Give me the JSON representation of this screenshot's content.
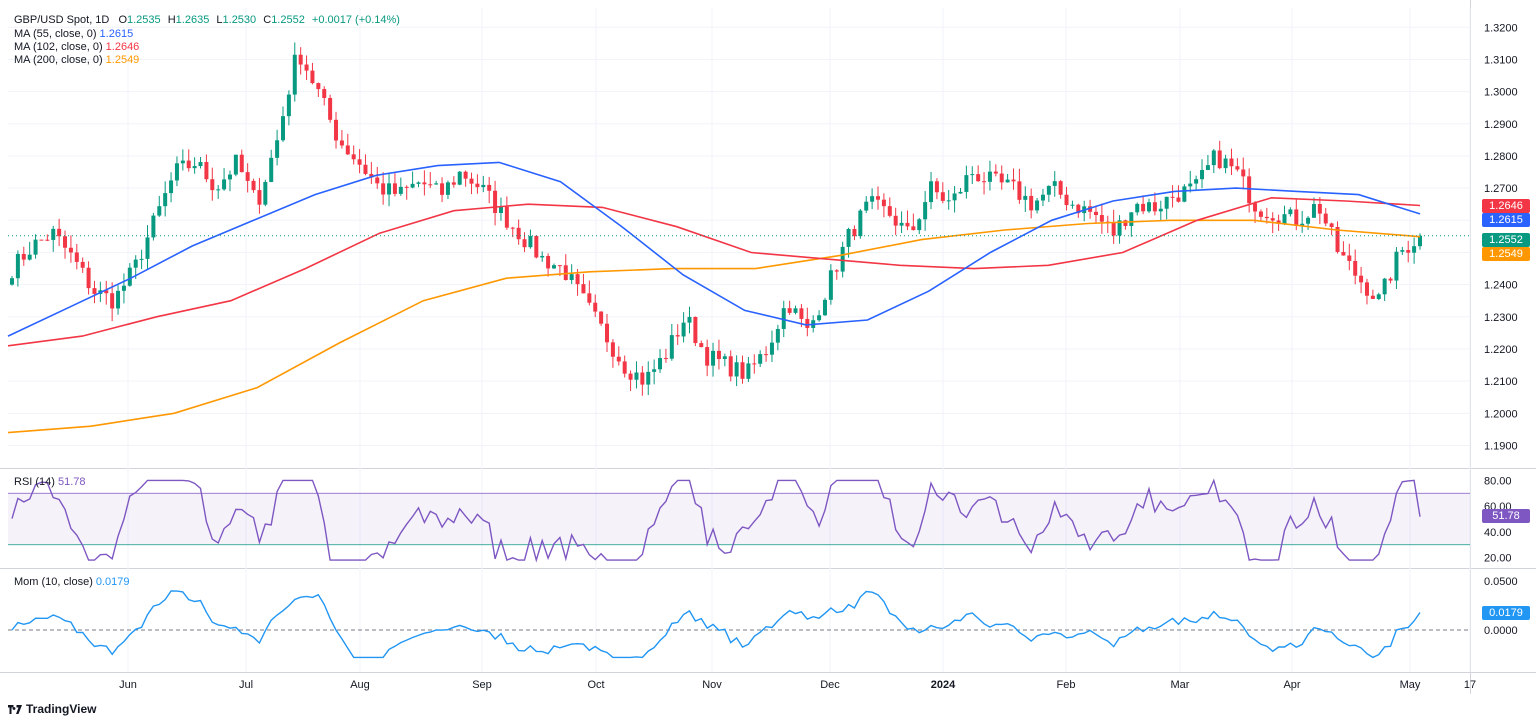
{
  "header": {
    "symbol": "GBP/USD Spot, 1D",
    "o_label": "O",
    "o": "1.2535",
    "h_label": "H",
    "h": "1.2635",
    "l_label": "L",
    "l": "1.2530",
    "c_label": "C",
    "c": "1.2552",
    "change": "+0.0017 (+0.14%)"
  },
  "indicators": [
    {
      "label": "MA (55, close, 0)",
      "value": "1.2615",
      "color": "#2962ff"
    },
    {
      "label": "MA (102, close, 0)",
      "value": "1.2646",
      "color": "#f23645"
    },
    {
      "label": "MA (200, close, 0)",
      "value": "1.2549",
      "color": "#ff9800"
    }
  ],
  "price_badges": {
    "ma102": "1.2646",
    "ma55": "1.2615",
    "close": "1.2552",
    "ma200": "1.2549"
  },
  "rsi": {
    "label": "RSI (14)",
    "value": "51.78",
    "color": "#7e57c2"
  },
  "mom": {
    "label": "Mom (10, close)",
    "value": "0.0179",
    "color": "#2196f3"
  },
  "brand": "TradingView",
  "colors": {
    "up": "#089981",
    "down": "#f23645",
    "ma55": "#2962ff",
    "ma102": "#f23645",
    "ma200": "#ff9800",
    "rsi": "#7e57c2",
    "mom": "#2196f3"
  },
  "chart_data": {
    "type": "candlestick",
    "title": "GBP/USD Spot, 1D",
    "price_axis_ticks": [
      "1.3200",
      "1.3100",
      "1.3000",
      "1.2900",
      "1.2800",
      "1.2700",
      "1.2600",
      "1.2500",
      "1.2400",
      "1.2300",
      "1.2200",
      "1.2100",
      "1.2000",
      "1.1900"
    ],
    "price_range": [
      1.183,
      1.326
    ],
    "time_axis_ticks": [
      "Jun",
      "Jul",
      "Aug",
      "Sep",
      "Oct",
      "Nov",
      "Dec",
      "2024",
      "Feb",
      "Mar",
      "Apr",
      "May",
      "17"
    ],
    "close_series_weekly_approx": [
      1.245,
      1.252,
      1.256,
      1.248,
      1.238,
      1.235,
      1.245,
      1.26,
      1.275,
      1.278,
      1.27,
      1.278,
      1.265,
      1.285,
      1.313,
      1.3,
      1.285,
      1.278,
      1.27,
      1.268,
      1.272,
      1.268,
      1.275,
      1.27,
      1.262,
      1.255,
      1.248,
      1.245,
      1.235,
      1.225,
      1.215,
      1.21,
      1.218,
      1.23,
      1.218,
      1.215,
      1.212,
      1.22,
      1.235,
      1.225,
      1.24,
      1.255,
      1.265,
      1.262,
      1.255,
      1.27,
      1.265,
      1.275,
      1.272,
      1.27,
      1.265,
      1.27,
      1.265,
      1.262,
      1.256,
      1.265,
      1.264,
      1.268,
      1.27,
      1.28,
      1.275,
      1.264,
      1.262,
      1.26,
      1.265,
      1.25,
      1.242,
      1.235,
      1.25,
      1.2552
    ],
    "ma55_approx": [
      1.224,
      1.233,
      1.242,
      1.252,
      1.26,
      1.268,
      1.274,
      1.277,
      1.278,
      1.272,
      1.258,
      1.243,
      1.232,
      1.2275,
      1.229,
      1.238,
      1.25,
      1.26,
      1.266,
      1.269,
      1.27,
      1.269,
      1.268,
      1.262
    ],
    "ma102_approx": [
      1.221,
      1.224,
      1.23,
      1.235,
      1.245,
      1.256,
      1.263,
      1.265,
      1.264,
      1.258,
      1.25,
      1.248,
      1.246,
      1.245,
      1.246,
      1.25,
      1.26,
      1.267,
      1.266,
      1.2646
    ],
    "ma200_approx": [
      1.194,
      1.196,
      1.2,
      1.208,
      1.222,
      1.235,
      1.242,
      1.244,
      1.245,
      1.245,
      1.249,
      1.254,
      1.257,
      1.259,
      1.26,
      1.26,
      1.257,
      1.2549
    ],
    "rsi_axis_ticks": [
      "80.00",
      "60.00",
      "40.00",
      "20.00"
    ],
    "rsi_bands": [
      30,
      70
    ],
    "rsi_last": 51.78,
    "mom_axis_ticks": [
      "0.0500",
      "0.0000"
    ],
    "mom_last": 0.0179
  }
}
